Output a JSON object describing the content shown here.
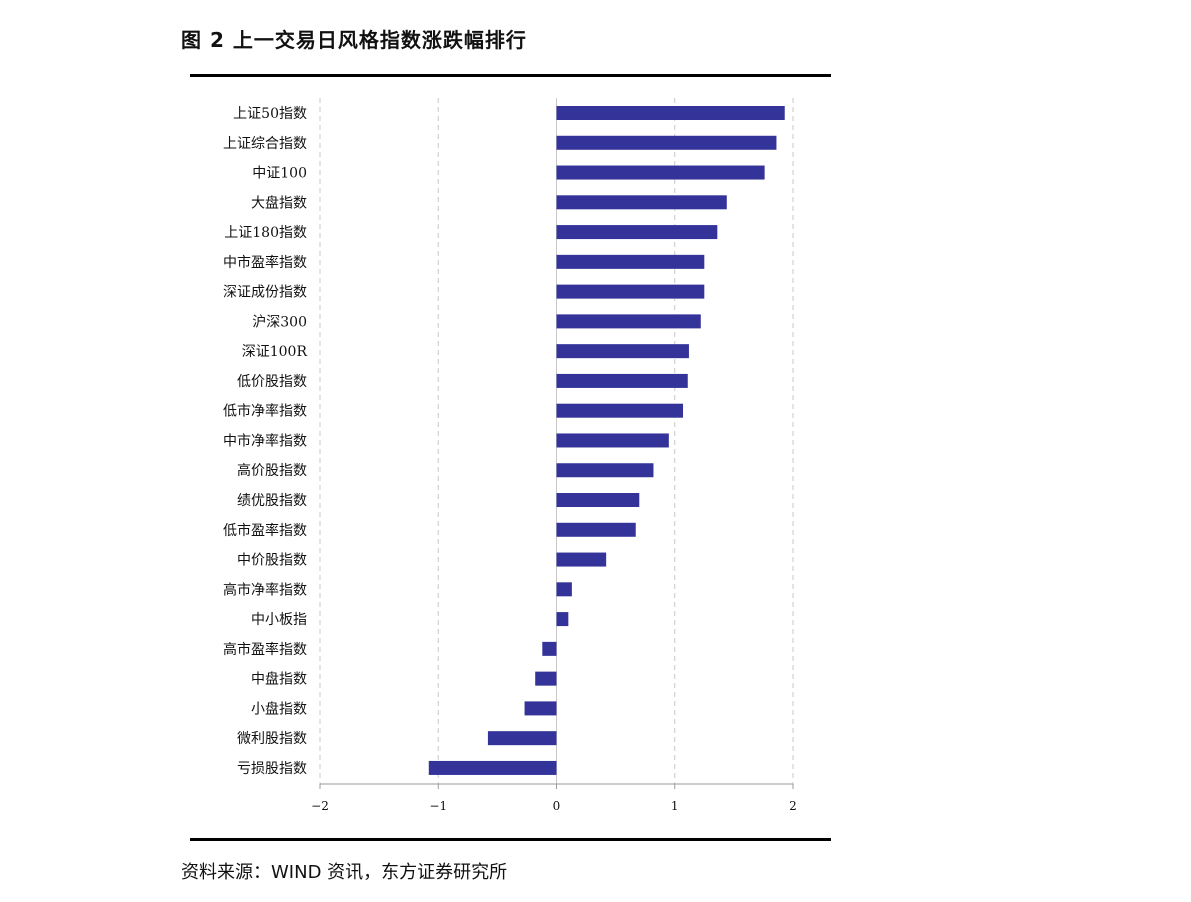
{
  "figure": {
    "title": "图 2  上一交易日风格指数涨跌幅排行",
    "source": "资料来源：WIND 资讯，东方证券研究所"
  },
  "colors": {
    "bar": "#333399",
    "grid": "#c8c8c8",
    "axis": "#9a9a9a",
    "rule": "#000000"
  },
  "chart_data": {
    "type": "bar",
    "orientation": "horizontal",
    "title": "上一交易日风格指数涨跌幅排行",
    "xlabel": "",
    "ylabel": "",
    "xlim": [
      -2,
      2
    ],
    "x_ticks": [
      -2,
      -1,
      0,
      1,
      2
    ],
    "x_tick_labels": [
      "−2",
      "−1",
      "0",
      "1",
      "2"
    ],
    "grid": "vertical dashed",
    "legend": "none",
    "categories": [
      "上证50指数",
      "上证综合指数",
      "中证100",
      "大盘指数",
      "上证180指数",
      "中市盈率指数",
      "深证成份指数",
      "沪深300",
      "深证100R",
      "低价股指数",
      "低市净率指数",
      "中市净率指数",
      "高价股指数",
      "绩优股指数",
      "低市盈率指数",
      "中价股指数",
      "高市净率指数",
      "中小板指",
      "高市盈率指数",
      "中盘指数",
      "小盘指数",
      "微利股指数",
      "亏损股指数"
    ],
    "values": [
      1.93,
      1.86,
      1.76,
      1.44,
      1.36,
      1.25,
      1.25,
      1.22,
      1.12,
      1.11,
      1.07,
      0.95,
      0.82,
      0.7,
      0.67,
      0.42,
      0.13,
      0.1,
      -0.12,
      -0.18,
      -0.27,
      -0.58,
      -1.08
    ]
  }
}
